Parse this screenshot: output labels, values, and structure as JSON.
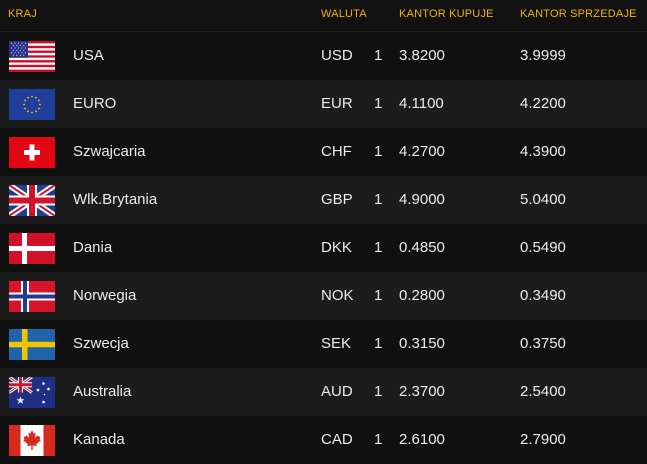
{
  "header": {
    "country": "KRAJ",
    "currency": "WALUTA",
    "buy": "KANTOR KUPUJE",
    "sell": "KANTOR SPRZEDAJE"
  },
  "rows": [
    {
      "country": "USA",
      "code": "USD",
      "unit": "1",
      "buy": "3.8200",
      "sell": "3.9999",
      "flag": "us-flag-icon"
    },
    {
      "country": "EURO",
      "code": "EUR",
      "unit": "1",
      "buy": "4.1100",
      "sell": "4.2200",
      "flag": "eu-flag-icon"
    },
    {
      "country": "Szwajcaria",
      "code": "CHF",
      "unit": "1",
      "buy": "4.2700",
      "sell": "4.3900",
      "flag": "swiss-flag-icon"
    },
    {
      "country": "Wlk.Brytania",
      "code": "GBP",
      "unit": "1",
      "buy": "4.9000",
      "sell": "5.0400",
      "flag": "uk-flag-icon"
    },
    {
      "country": "Dania",
      "code": "DKK",
      "unit": "1",
      "buy": "0.4850",
      "sell": "0.5490",
      "flag": "denmark-flag-icon"
    },
    {
      "country": "Norwegia",
      "code": "NOK",
      "unit": "1",
      "buy": "0.2800",
      "sell": "0.3490",
      "flag": "norway-flag-icon"
    },
    {
      "country": "Szwecja",
      "code": "SEK",
      "unit": "1",
      "buy": "0.3150",
      "sell": "0.3750",
      "flag": "sweden-flag-icon"
    },
    {
      "country": "Australia",
      "code": "AUD",
      "unit": "1",
      "buy": "2.3700",
      "sell": "2.5400",
      "flag": "australia-flag-icon"
    },
    {
      "country": "Kanada",
      "code": "CAD",
      "unit": "1",
      "buy": "2.6100",
      "sell": "2.7900",
      "flag": "canada-flag-icon"
    }
  ],
  "colors": {
    "header_text": "#f0b400",
    "row_light": "#1c1c1c",
    "row_dark": "#101010"
  }
}
